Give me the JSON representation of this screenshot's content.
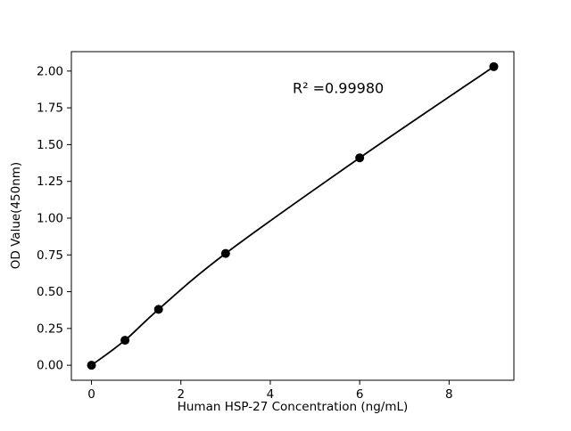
{
  "figure": {
    "background": "#ffffff"
  },
  "chart_data": {
    "type": "scatter",
    "title": "",
    "xlabel": "Human HSP-27 Concentration (ng/mL)",
    "ylabel": "OD Value(450nm)",
    "annotation": {
      "text": "R² =0.99980",
      "x": 4.5,
      "y": 1.85
    },
    "x": [
      0,
      0.75,
      1.5,
      3,
      6,
      9
    ],
    "y": [
      0.0,
      0.17,
      0.38,
      0.76,
      1.41,
      2.03
    ],
    "fit": "smooth curve through all points",
    "xlim": [
      -0.45,
      9.45
    ],
    "ylim": [
      -0.102,
      2.132
    ],
    "xticks": {
      "values": [
        0,
        2,
        4,
        6,
        8
      ],
      "labels": [
        "0",
        "2",
        "4",
        "6",
        "8"
      ]
    },
    "yticks": {
      "values": [
        0.0,
        0.25,
        0.5,
        0.75,
        1.0,
        1.25,
        1.5,
        1.75,
        2.0
      ],
      "labels": [
        "0.00",
        "0.25",
        "0.50",
        "0.75",
        "1.00",
        "1.25",
        "1.50",
        "1.75",
        "2.00"
      ]
    },
    "grid": false,
    "legend": null,
    "marker_color": "#000000",
    "line_color": "#000000",
    "axis_color": "#000000"
  }
}
